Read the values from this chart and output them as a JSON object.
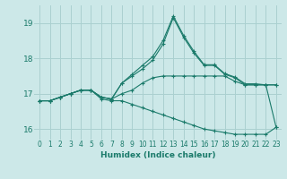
{
  "bg_color": "#cce8e8",
  "grid_color": "#aad0d0",
  "line_color": "#1a7a6a",
  "xlabel": "Humidex (Indice chaleur)",
  "ylim": [
    15.7,
    19.5
  ],
  "xlim": [
    -0.5,
    23.5
  ],
  "yticks": [
    16,
    17,
    18,
    19
  ],
  "xticks": [
    0,
    1,
    2,
    3,
    4,
    5,
    6,
    7,
    8,
    9,
    10,
    11,
    12,
    13,
    14,
    15,
    16,
    17,
    18,
    19,
    20,
    21,
    22,
    23
  ],
  "series": [
    [
      16.8,
      16.8,
      16.9,
      17.0,
      17.1,
      17.1,
      16.9,
      16.85,
      17.0,
      17.1,
      17.3,
      17.45,
      17.5,
      17.5,
      17.5,
      17.5,
      17.5,
      17.5,
      17.5,
      17.35,
      17.25,
      17.25,
      17.25,
      17.25
    ],
    [
      16.8,
      16.8,
      16.9,
      17.0,
      17.1,
      17.1,
      16.9,
      16.85,
      17.3,
      17.5,
      17.7,
      17.95,
      18.4,
      19.15,
      18.6,
      18.15,
      17.8,
      17.8,
      17.55,
      17.45,
      17.25,
      17.25,
      17.25,
      17.25
    ],
    [
      16.8,
      16.8,
      16.9,
      17.0,
      17.1,
      17.1,
      16.9,
      16.85,
      17.3,
      17.55,
      17.8,
      18.05,
      18.5,
      19.2,
      18.65,
      18.2,
      17.82,
      17.82,
      17.57,
      17.47,
      17.28,
      17.28,
      17.25,
      16.05
    ],
    [
      16.8,
      16.8,
      16.9,
      17.0,
      17.1,
      17.1,
      16.85,
      16.8,
      16.8,
      16.7,
      16.6,
      16.5,
      16.4,
      16.3,
      16.2,
      16.1,
      16.0,
      15.95,
      15.9,
      15.85,
      15.85,
      15.85,
      15.85,
      16.05
    ]
  ]
}
